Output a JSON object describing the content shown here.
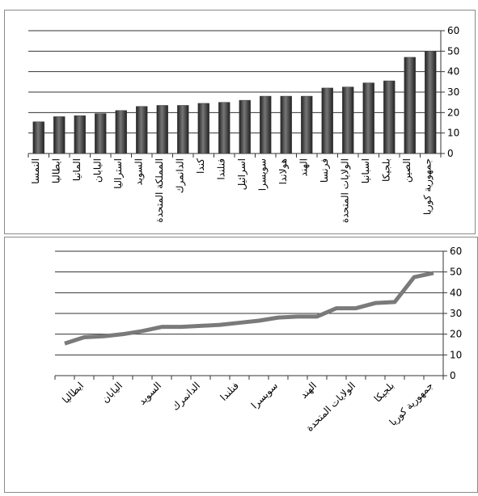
{
  "chart_data": [
    {
      "type": "bar",
      "categories": [
        "النمسا",
        "ايطاليا",
        "المانيا",
        "اليابان",
        "استراليا",
        "السويد",
        "المملكة المتحدة",
        "الدانمرك",
        "كندا",
        "فنلندا",
        "اسرائيل",
        "سويسرا",
        "هولاندا",
        "الهند",
        "فرنسا",
        "الولايات المتحدة",
        "اسبانيا",
        "بلجيكا",
        "الصين",
        "جمهورية كوريا"
      ],
      "values": [
        15.5,
        18,
        18.5,
        19.5,
        21,
        23,
        23.5,
        23.5,
        24.5,
        25,
        26,
        28,
        28,
        28,
        32,
        32.5,
        34.5,
        35.5,
        47,
        50
      ],
      "color": "#3a3a3a",
      "ylim": [
        0,
        60
      ],
      "yticks": [
        0,
        10,
        20,
        30,
        40,
        50,
        60
      ],
      "grid": true
    },
    {
      "type": "line",
      "categories": [
        null,
        "ايطاليا",
        null,
        "اليابان",
        null,
        "السويد",
        null,
        "الدانمرك",
        null,
        "فنلندا",
        null,
        "سويسرا",
        null,
        "الهند",
        null,
        "الولايات المتحدة",
        null,
        "بلجيكا",
        null,
        "جمهورية كوريا"
      ],
      "values": [
        15.5,
        18.5,
        19,
        20,
        21.5,
        23.5,
        23.5,
        24,
        24.5,
        25.5,
        26.5,
        28,
        28.5,
        28.5,
        32.5,
        32.5,
        35,
        35.5,
        47.5,
        49.5
      ],
      "color": "#7a7a7a",
      "ylim": [
        0,
        60
      ],
      "yticks": [
        0,
        10,
        20,
        30,
        40,
        50,
        60
      ],
      "grid": true
    }
  ]
}
